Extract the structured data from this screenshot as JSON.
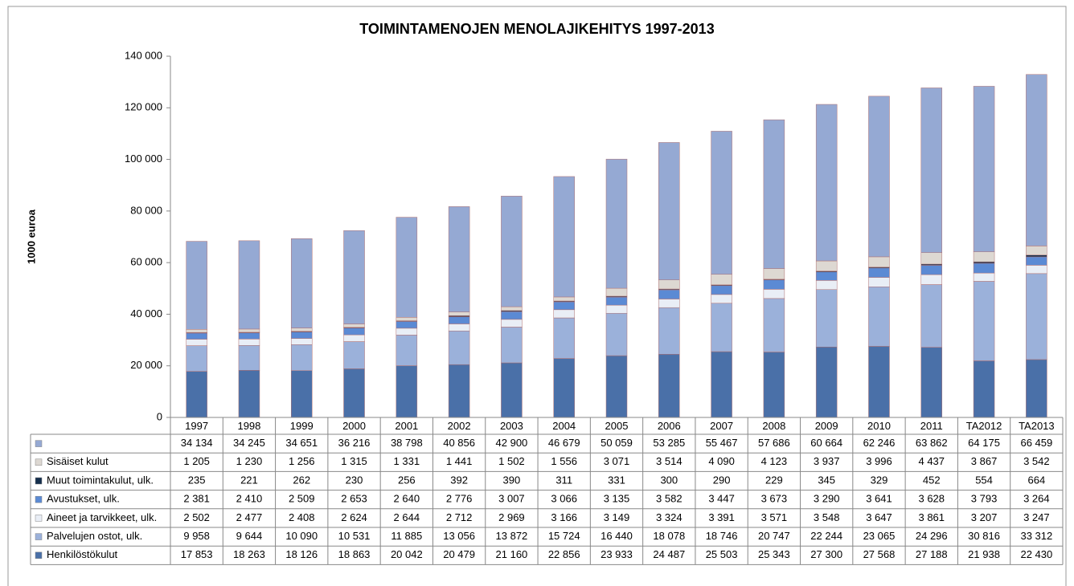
{
  "chart_data": {
    "type": "stacked-bar",
    "title": "TOIMINTAMENOJEN MENOLAJIKEHITYS 1997-2013",
    "y_label": "1000 euroa",
    "categories": [
      "1997",
      "1998",
      "1999",
      "2000",
      "2001",
      "2002",
      "2003",
      "2004",
      "2005",
      "2006",
      "2007",
      "2008",
      "2009",
      "2010",
      "2011",
      "TA2012",
      "TA2013"
    ],
    "ylim": [
      0,
      140000
    ],
    "yticks": [
      0,
      {
        "value": 20000,
        "label": "20 000"
      },
      {
        "value": 40000,
        "label": "40 000"
      },
      {
        "value": 60000,
        "label": "60 000"
      },
      {
        "value": 80000,
        "label": "80 000"
      },
      {
        "value": 100000,
        "label": "100 000"
      },
      {
        "value": 120000,
        "label": "120 000"
      },
      {
        "value": 140000,
        "label": "140 000"
      }
    ],
    "series": [
      {
        "name": "Henkilöstökulut",
        "color": "#4a70a8",
        "values": [
          17853,
          18263,
          18126,
          18863,
          20042,
          20479,
          21160,
          22856,
          23933,
          24487,
          25503,
          25343,
          27300,
          27568,
          27188,
          21938,
          22430
        ],
        "value_labels": [
          "17 853",
          "18 263",
          "18 126",
          "18 863",
          "20 042",
          "20 479",
          "21 160",
          "22 856",
          "23 933",
          "24 487",
          "25 503",
          "25 343",
          "27 300",
          "27 568",
          "27 188",
          "21 938",
          "22 430"
        ]
      },
      {
        "name": "Palvelujen ostot, ulk.",
        "color": "#9bb1da",
        "values": [
          9958,
          9644,
          10090,
          10531,
          11885,
          13056,
          13872,
          15724,
          16440,
          18078,
          18746,
          20747,
          22244,
          23065,
          24296,
          30816,
          33312
        ],
        "value_labels": [
          "9 958",
          "9 644",
          "10 090",
          "10 531",
          "11 885",
          "13 056",
          "13 872",
          "15 724",
          "16 440",
          "18 078",
          "18 746",
          "20 747",
          "22 244",
          "23 065",
          "24 296",
          "30 816",
          "33 312"
        ]
      },
      {
        "name": "Aineet ja tarvikkeet, ulk.",
        "color": "#e9eef6",
        "values": [
          2502,
          2477,
          2408,
          2624,
          2644,
          2712,
          2969,
          3166,
          3149,
          3324,
          3391,
          3571,
          3548,
          3647,
          3861,
          3207,
          3247
        ],
        "value_labels": [
          "2 502",
          "2 477",
          "2 408",
          "2 624",
          "2 644",
          "2 712",
          "2 969",
          "3 166",
          "3 149",
          "3 324",
          "3 391",
          "3 571",
          "3 548",
          "3 647",
          "3 861",
          "3 207",
          "3 247"
        ]
      },
      {
        "name": "Avustukset, ulk.",
        "color": "#5b8ad4",
        "values": [
          2381,
          2410,
          2509,
          2653,
          2640,
          2776,
          3007,
          3066,
          3135,
          3582,
          3447,
          3673,
          3290,
          3641,
          3628,
          3793,
          3264
        ],
        "value_labels": [
          "2 381",
          "2 410",
          "2 509",
          "2 653",
          "2 640",
          "2 776",
          "3 007",
          "3 066",
          "3 135",
          "3 582",
          "3 447",
          "3 673",
          "3 290",
          "3 641",
          "3 628",
          "3 793",
          "3 264"
        ]
      },
      {
        "name": "Muut toimintakulut, ulk.",
        "color": "#142e4c",
        "values": [
          235,
          221,
          262,
          230,
          256,
          392,
          390,
          311,
          331,
          300,
          290,
          229,
          345,
          329,
          452,
          554,
          664
        ]
      },
      {
        "name": "Sisäiset kulut",
        "color": "#ddd8d2",
        "values": [
          1205,
          1230,
          1256,
          1315,
          1331,
          1441,
          1502,
          1556,
          3071,
          3514,
          4090,
          4123,
          3937,
          3996,
          4437,
          3867,
          3542
        ],
        "value_labels": [
          "1 205",
          "1 230",
          "1 256",
          "1 315",
          "1 331",
          "1 441",
          "1 502",
          "1 556",
          "3 071",
          "3 514",
          "4 090",
          "4 123",
          "3 937",
          "3 996",
          "4 437",
          "3 867",
          "3 542"
        ]
      },
      {
        "name": null,
        "color": "#95a9d3",
        "values": [
          34134,
          34245,
          34651,
          36216,
          38798,
          40856,
          42900,
          46679,
          50059,
          53285,
          55467,
          57686,
          60664,
          62246,
          63862,
          64175,
          66459
        ],
        "value_labels": [
          "34 134",
          "34 245",
          "34 651",
          "36 216",
          "38 798",
          "40 856",
          "42 900",
          "46 679",
          "50 059",
          "53 285",
          "55 467",
          "57 686",
          "60 664",
          "62 246",
          "63 862",
          "64 175",
          "66 459"
        ]
      }
    ]
  }
}
